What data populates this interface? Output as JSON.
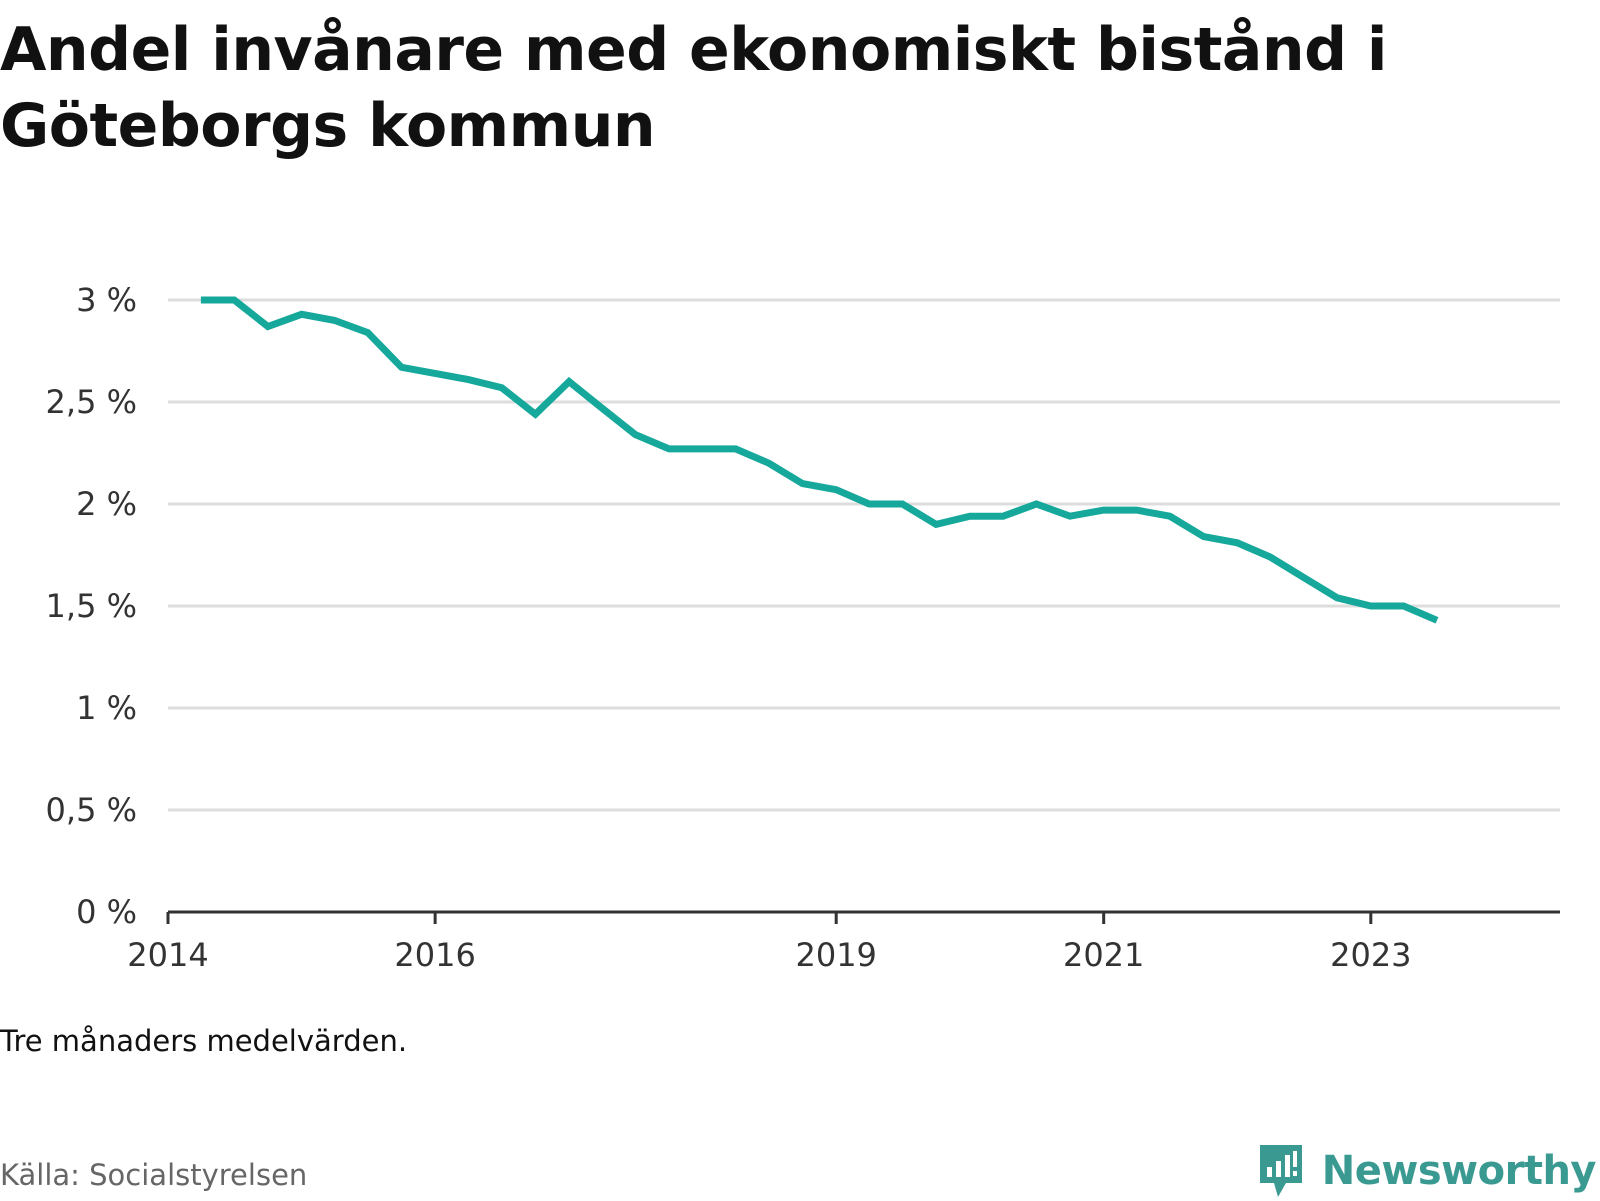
{
  "title": "Andel invånare med ekonomiskt bistånd i Göteborgs kommun",
  "note": "Tre månaders medelvärden.",
  "source": "Källa: Socialstyrelsen",
  "brand": "Newsworthy",
  "colors": {
    "line": "#15a89b",
    "grid": "#dddddd",
    "axis": "#333333",
    "brand": "#3a9a92"
  },
  "chart_data": {
    "type": "line",
    "title": "Andel invånare med ekonomiskt bistånd i Göteborgs kommun",
    "xlabel": "",
    "ylabel": "",
    "grid": true,
    "legend": "none",
    "xlim": [
      "2014-01-01",
      "2024-06-01"
    ],
    "ylim": [
      0,
      3
    ],
    "x_ticks": [
      {
        "value": "2014-01-01",
        "label": "2014"
      },
      {
        "value": "2016-01-01",
        "label": "2016"
      },
      {
        "value": "2019-01-01",
        "label": "2019"
      },
      {
        "value": "2021-01-01",
        "label": "2021"
      },
      {
        "value": "2023-01-01",
        "label": "2023"
      }
    ],
    "y_ticks": [
      {
        "value": 0,
        "label": "0 %"
      },
      {
        "value": 0.5,
        "label": "0,5 %"
      },
      {
        "value": 1,
        "label": "1 %"
      },
      {
        "value": 1.5,
        "label": "1,5 %"
      },
      {
        "value": 2,
        "label": "2 %"
      },
      {
        "value": 2.5,
        "label": "2,5 %"
      },
      {
        "value": 3,
        "label": "3 %"
      }
    ],
    "series": [
      {
        "points": [
          {
            "x": "2014-04-01",
            "y": 3.0
          },
          {
            "x": "2014-07-01",
            "y": 3.0
          },
          {
            "x": "2014-10-01",
            "y": 2.87
          },
          {
            "x": "2015-01-01",
            "y": 2.93
          },
          {
            "x": "2015-04-01",
            "y": 2.9
          },
          {
            "x": "2015-07-01",
            "y": 2.84
          },
          {
            "x": "2015-10-01",
            "y": 2.67
          },
          {
            "x": "2016-01-01",
            "y": 2.64
          },
          {
            "x": "2016-04-01",
            "y": 2.61
          },
          {
            "x": "2016-07-01",
            "y": 2.57
          },
          {
            "x": "2016-10-01",
            "y": 2.44
          },
          {
            "x": "2017-01-01",
            "y": 2.6
          },
          {
            "x": "2017-04-01",
            "y": 2.47
          },
          {
            "x": "2017-07-01",
            "y": 2.34
          },
          {
            "x": "2017-10-01",
            "y": 2.27
          },
          {
            "x": "2018-01-01",
            "y": 2.27
          },
          {
            "x": "2018-04-01",
            "y": 2.27
          },
          {
            "x": "2018-07-01",
            "y": 2.2
          },
          {
            "x": "2018-10-01",
            "y": 2.1
          },
          {
            "x": "2019-01-01",
            "y": 2.07
          },
          {
            "x": "2019-04-01",
            "y": 2.0
          },
          {
            "x": "2019-07-01",
            "y": 2.0
          },
          {
            "x": "2019-10-01",
            "y": 1.9
          },
          {
            "x": "2020-01-01",
            "y": 1.94
          },
          {
            "x": "2020-04-01",
            "y": 1.94
          },
          {
            "x": "2020-07-01",
            "y": 2.0
          },
          {
            "x": "2020-10-01",
            "y": 1.94
          },
          {
            "x": "2021-01-01",
            "y": 1.97
          },
          {
            "x": "2021-04-01",
            "y": 1.97
          },
          {
            "x": "2021-07-01",
            "y": 1.94
          },
          {
            "x": "2021-10-01",
            "y": 1.84
          },
          {
            "x": "2022-01-01",
            "y": 1.81
          },
          {
            "x": "2022-04-01",
            "y": 1.74
          },
          {
            "x": "2022-07-01",
            "y": 1.64
          },
          {
            "x": "2022-10-01",
            "y": 1.54
          },
          {
            "x": "2023-01-01",
            "y": 1.5
          },
          {
            "x": "2023-04-01",
            "y": 1.5
          },
          {
            "x": "2023-07-01",
            "y": 1.43
          }
        ]
      }
    ]
  }
}
